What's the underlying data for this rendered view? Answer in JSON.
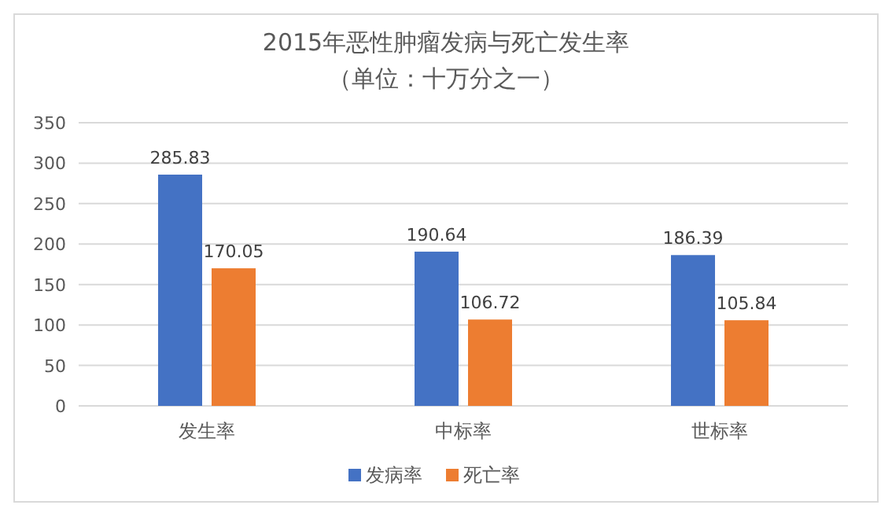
{
  "chart_data": {
    "type": "bar",
    "title": "2015年恶性肿瘤发病与死亡发生率",
    "subtitle": "（单位：十万分之一）",
    "categories": [
      "发生率",
      "中标率",
      "世标率"
    ],
    "series": [
      {
        "name": "发病率",
        "color": "#4472c4",
        "values": [
          285.83,
          190.64,
          186.39
        ]
      },
      {
        "name": "死亡率",
        "color": "#ed7d31",
        "values": [
          170.05,
          106.72,
          105.84
        ]
      }
    ],
    "ylim": [
      0,
      350
    ],
    "yticks": [
      0,
      50,
      100,
      150,
      200,
      250,
      300,
      350
    ],
    "grid": "y",
    "legend": "bottom",
    "data_labels": true
  }
}
